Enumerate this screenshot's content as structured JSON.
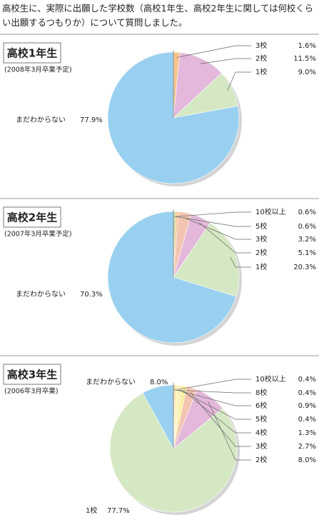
{
  "header": {
    "title": "高校生に、実際に出願した学校数（高校1年生、高校2年生に関しては何校くらい出願するつもりか）について質問しました。"
  },
  "chart_data": [
    {
      "type": "pie",
      "title": "高校1年生",
      "subtitle": "(2008年3月卒業予定)",
      "categories": [
        "3校",
        "2校",
        "1校",
        "まだわからない"
      ],
      "values": [
        1.6,
        11.5,
        9.0,
        77.9
      ],
      "value_labels": [
        "1.6%",
        "11.5%",
        "9.0%",
        "77.9%"
      ],
      "colors": [
        "#f5c48d",
        "#e3b8da",
        "#d5e8c4",
        "#99d0f0"
      ]
    },
    {
      "type": "pie",
      "title": "高校2年生",
      "subtitle": "(2007年3月卒業予定)",
      "categories": [
        "10校以上",
        "5校",
        "3校",
        "2校",
        "1校",
        "まだわからない"
      ],
      "values": [
        0.6,
        0.6,
        3.2,
        5.1,
        20.3,
        70.3
      ],
      "value_labels": [
        "0.6%",
        "0.6%",
        "3.2%",
        "5.1%",
        "20.3%",
        "70.3%"
      ],
      "colors": [
        "#c8d89a",
        "#f5c48d",
        "#f3c5b0",
        "#e3b8da",
        "#d5e8c4",
        "#99d0f0"
      ]
    },
    {
      "type": "pie",
      "title": "高校3年生",
      "subtitle": "(2006年3月卒業)",
      "categories": [
        "10校以上",
        "8校",
        "6校",
        "5校",
        "4校",
        "3校",
        "2校",
        "1校",
        "まだわからない"
      ],
      "values": [
        0.4,
        0.4,
        0.9,
        0.4,
        1.3,
        2.7,
        8.0,
        77.7,
        8.0
      ],
      "value_labels": [
        "0.4%",
        "0.4%",
        "0.9%",
        "0.4%",
        "1.3%",
        "2.7%",
        "8.0%",
        "77.7%",
        "8.0%"
      ],
      "colors": [
        "#f5c48d",
        "#f9e59a",
        "#fbf3b0",
        "#f7d9a0",
        "#f8f0a0",
        "#f3c5b0",
        "#e3b8da",
        "#d5e8c4",
        "#99d0f0"
      ]
    }
  ]
}
